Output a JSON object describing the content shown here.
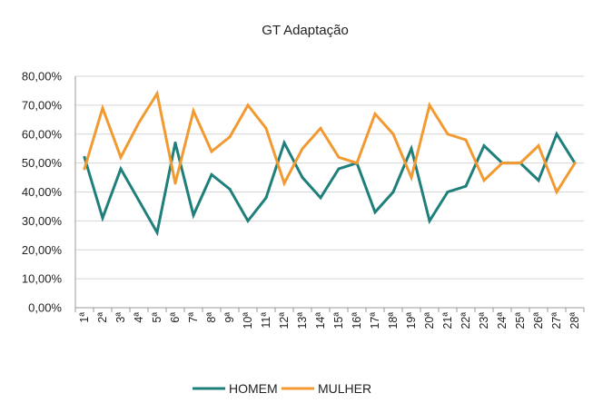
{
  "chart_data": {
    "type": "line",
    "title": "GT Adaptação",
    "xlabel": "",
    "ylabel": "",
    "categories": [
      "1ª",
      "2ª",
      "3ª",
      "4ª",
      "5ª",
      "6ª",
      "7ª",
      "8ª",
      "9ª",
      "10ª",
      "11ª",
      "12ª",
      "13ª",
      "14ª",
      "15ª",
      "16ª",
      "17ª",
      "18ª",
      "19ª",
      "20ª",
      "21ª",
      "22ª",
      "23ª",
      "24ª",
      "25ª",
      "26ª",
      "27ª",
      "28ª"
    ],
    "ylim": [
      0,
      80
    ],
    "yticks": [
      0,
      10,
      20,
      30,
      40,
      50,
      60,
      70,
      80
    ],
    "ytick_labels": [
      "0,00%",
      "10,00%",
      "20,00%",
      "30,00%",
      "40,00%",
      "50,00%",
      "60,00%",
      "70,00%",
      "80,00%"
    ],
    "grid": true,
    "legend_position": "bottom",
    "series": [
      {
        "name": "HOMEM",
        "color": "#1f7f7a",
        "values": [
          52,
          31,
          48,
          37,
          26,
          57,
          32,
          46,
          41,
          30,
          38,
          57,
          45,
          38,
          48,
          50,
          33,
          40,
          55,
          30,
          40,
          42,
          56,
          50,
          50,
          44,
          60,
          50
        ]
      },
      {
        "name": "MULHER",
        "color": "#f29a32",
        "values": [
          48,
          69,
          52,
          64,
          74,
          43,
          68,
          54,
          59,
          70,
          62,
          43,
          55,
          62,
          52,
          50,
          67,
          60,
          45,
          70,
          60,
          58,
          44,
          50,
          50,
          56,
          40,
          50
        ]
      }
    ]
  }
}
